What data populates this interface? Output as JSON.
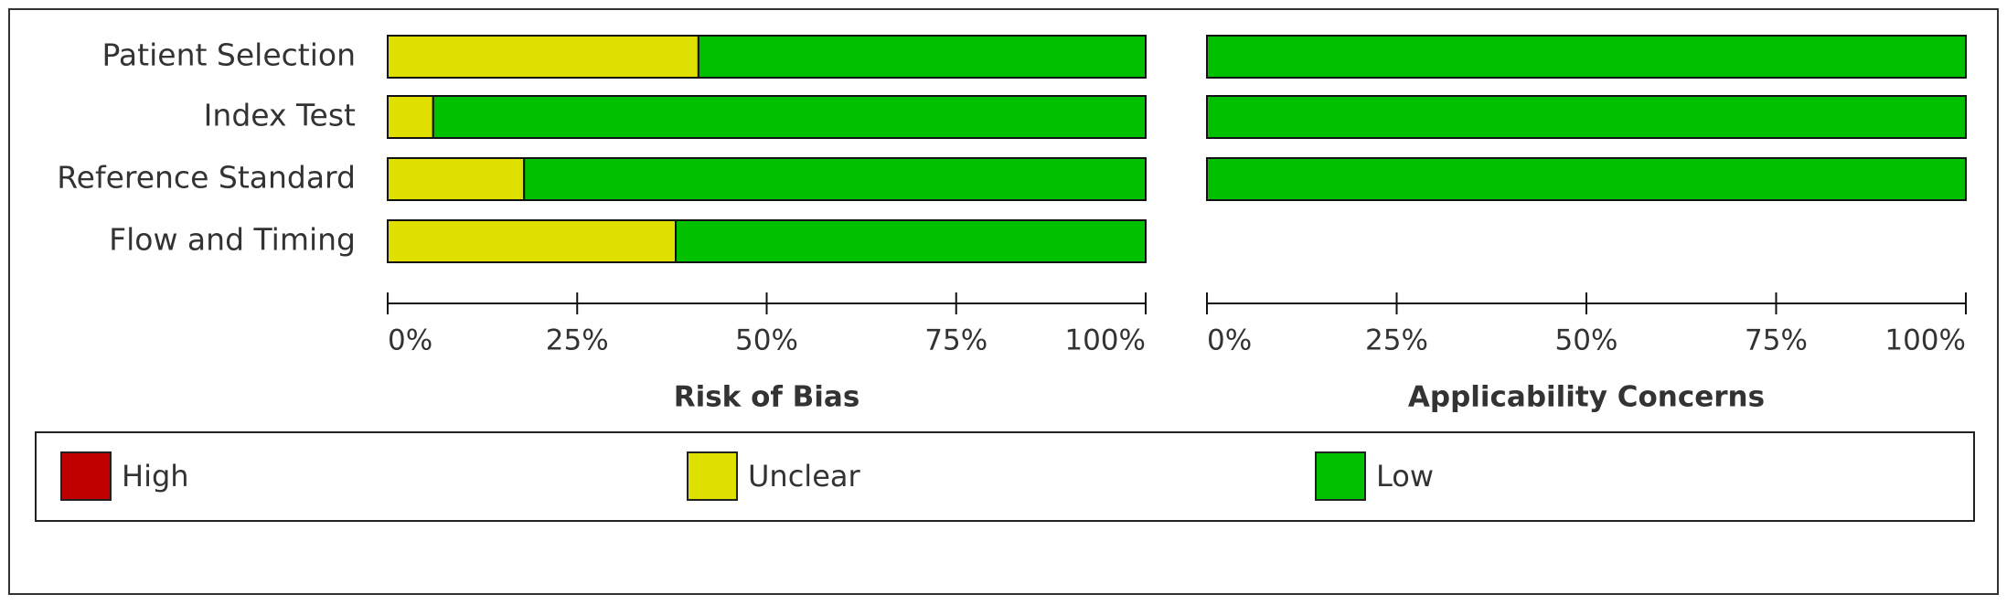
{
  "chart_data": [
    {
      "type": "bar",
      "orientation": "horizontal",
      "stacked": true,
      "title": "Risk of Bias",
      "categories": [
        "Patient Selection",
        "Index Test",
        "Reference Standard",
        "Flow and Timing"
      ],
      "series": [
        {
          "name": "High",
          "color": "#c00000",
          "values": [
            0,
            0,
            0,
            0
          ]
        },
        {
          "name": "Unclear",
          "color": "#e0e000",
          "values": [
            41,
            6,
            18,
            38
          ]
        },
        {
          "name": "Low",
          "color": "#00c000",
          "values": [
            59,
            94,
            82,
            62
          ]
        }
      ],
      "xlim": [
        0,
        100
      ],
      "xticks": [
        {
          "value": 0,
          "label": "0%"
        },
        {
          "value": 25,
          "label": "25%"
        },
        {
          "value": 50,
          "label": "50%"
        },
        {
          "value": 75,
          "label": "75%"
        },
        {
          "value": 100,
          "label": "100%"
        }
      ]
    },
    {
      "type": "bar",
      "orientation": "horizontal",
      "stacked": true,
      "title": "Applicability Concerns",
      "series": [
        {
          "color": "#c00000",
          "values": [
            0,
            0,
            0,
            null
          ]
        },
        {
          "color": "#e0e000",
          "values": [
            0,
            0,
            0,
            null
          ]
        },
        {
          "color": "#00c000",
          "values": [
            100,
            100,
            100,
            null
          ]
        }
      ],
      "xlim": [
        0,
        100
      ],
      "xticks": [
        {
          "value": 0,
          "label": "0%"
        },
        {
          "value": 25,
          "label": "25%"
        },
        {
          "value": 50,
          "label": "50%"
        },
        {
          "value": 75,
          "label": "75%"
        },
        {
          "value": 100,
          "label": "100%"
        }
      ]
    }
  ]
}
